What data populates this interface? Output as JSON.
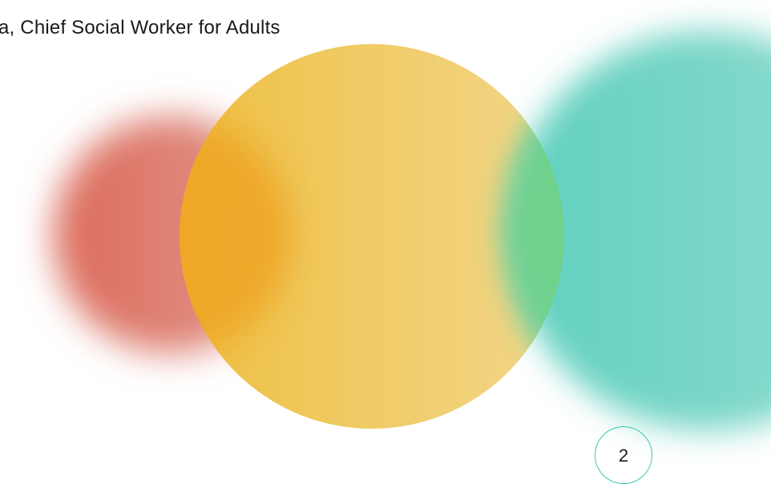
{
  "header": {
    "text": "a, Chief Social Worker for Adults"
  },
  "page_number": "2"
}
